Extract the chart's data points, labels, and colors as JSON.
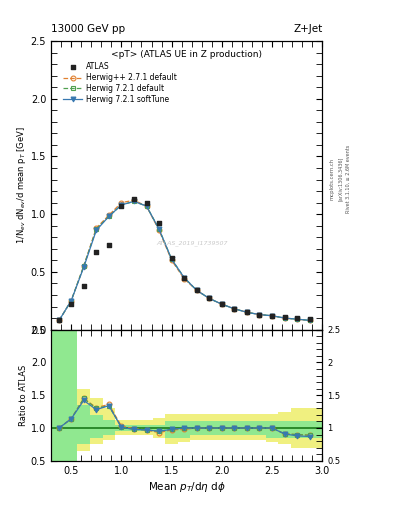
{
  "title_top": "13000 GeV pp",
  "title_right": "Z+Jet",
  "subtitle": "<pT> (ATLAS UE in Z production)",
  "xlabel": "Mean $p_T$/d$\\eta$ d$\\phi$",
  "ylabel_main": "1/N$_{ev}$ dN$_{ev}$/d mean p$_T$ [GeV]",
  "ylabel_ratio": "Ratio to ATLAS",
  "watermark": "ATLAS_2019_I1739507",
  "right_label1": "Rivet 3.1.10, ≥ 2.6M events",
  "right_label2": "[arXiv:1306.3436]",
  "right_label3": "mcplots.cern.ch",
  "xlim": [
    0.3,
    3.0
  ],
  "ylim_main": [
    0.0,
    2.5
  ],
  "ylim_ratio": [
    0.5,
    2.5
  ],
  "atlas_x": [
    0.38,
    0.5,
    0.625,
    0.75,
    0.875,
    1.0,
    1.125,
    1.25,
    1.375,
    1.5,
    1.625,
    1.75,
    1.875,
    2.0,
    2.125,
    2.25,
    2.375,
    2.5,
    2.625,
    2.75,
    2.875
  ],
  "atlas_y": [
    0.08,
    0.22,
    0.38,
    0.67,
    0.73,
    1.07,
    1.13,
    1.1,
    0.92,
    0.62,
    0.45,
    0.34,
    0.27,
    0.22,
    0.18,
    0.15,
    0.13,
    0.12,
    0.11,
    0.1,
    0.09
  ],
  "herwig_pp_x": [
    0.38,
    0.5,
    0.625,
    0.75,
    0.875,
    1.0,
    1.125,
    1.25,
    1.375,
    1.5,
    1.625,
    1.75,
    1.875,
    2.0,
    2.125,
    2.25,
    2.375,
    2.5,
    2.625,
    2.75,
    2.875
  ],
  "herwig_pp_y": [
    0.08,
    0.25,
    0.55,
    0.88,
    0.99,
    1.1,
    1.12,
    1.07,
    0.86,
    0.6,
    0.44,
    0.34,
    0.27,
    0.22,
    0.18,
    0.15,
    0.13,
    0.12,
    0.1,
    0.09,
    0.08
  ],
  "herwig721d_x": [
    0.38,
    0.5,
    0.625,
    0.75,
    0.875,
    1.0,
    1.125,
    1.25,
    1.375,
    1.5,
    1.625,
    1.75,
    1.875,
    2.0,
    2.125,
    2.25,
    2.375,
    2.5,
    2.625,
    2.75,
    2.875
  ],
  "herwig721d_y": [
    0.08,
    0.25,
    0.55,
    0.87,
    0.98,
    1.08,
    1.11,
    1.07,
    0.87,
    0.61,
    0.45,
    0.34,
    0.27,
    0.22,
    0.18,
    0.15,
    0.13,
    0.12,
    0.1,
    0.09,
    0.08
  ],
  "herwig721s_x": [
    0.38,
    0.5,
    0.625,
    0.75,
    0.875,
    1.0,
    1.125,
    1.25,
    1.375,
    1.5,
    1.625,
    1.75,
    1.875,
    2.0,
    2.125,
    2.25,
    2.375,
    2.5,
    2.625,
    2.75,
    2.875
  ],
  "herwig721s_y": [
    0.08,
    0.25,
    0.54,
    0.86,
    0.98,
    1.08,
    1.11,
    1.07,
    0.87,
    0.61,
    0.45,
    0.34,
    0.27,
    0.22,
    0.18,
    0.15,
    0.13,
    0.12,
    0.1,
    0.09,
    0.08
  ],
  "ratio_pp_y": [
    1.0,
    1.14,
    1.45,
    1.31,
    1.36,
    1.03,
    0.99,
    0.97,
    0.93,
    0.97,
    0.98,
    1.0,
    1.0,
    1.0,
    1.0,
    1.0,
    1.0,
    1.0,
    0.91,
    0.9,
    0.89
  ],
  "ratio_721d_y": [
    1.0,
    1.14,
    1.45,
    1.3,
    1.34,
    1.01,
    0.98,
    0.97,
    0.95,
    0.98,
    1.0,
    1.0,
    1.0,
    1.0,
    1.0,
    1.0,
    1.0,
    1.0,
    0.91,
    0.9,
    0.89
  ],
  "ratio_721s_y": [
    1.0,
    1.14,
    1.42,
    1.28,
    1.34,
    1.01,
    0.98,
    0.97,
    0.95,
    0.98,
    1.0,
    1.0,
    1.0,
    1.0,
    1.0,
    1.0,
    1.0,
    1.0,
    0.91,
    0.88,
    0.87
  ],
  "band_x_edges": [
    0.3,
    0.44,
    0.5625,
    0.6875,
    0.8125,
    0.9375,
    1.0625,
    1.1875,
    1.3125,
    1.4375,
    1.5625,
    1.6875,
    1.8125,
    1.9375,
    2.0625,
    2.1875,
    2.3125,
    2.4375,
    2.5625,
    2.6875,
    2.8125,
    3.0
  ],
  "band_green_lo": [
    0.5,
    0.5,
    0.75,
    0.85,
    0.9,
    0.95,
    0.95,
    0.95,
    0.95,
    0.85,
    0.85,
    0.9,
    0.9,
    0.9,
    0.9,
    0.9,
    0.9,
    0.85,
    0.85,
    0.85,
    0.85,
    0.85
  ],
  "band_green_hi": [
    2.5,
    2.5,
    1.35,
    1.2,
    1.12,
    1.05,
    1.05,
    1.05,
    1.05,
    1.1,
    1.1,
    1.1,
    1.1,
    1.1,
    1.1,
    1.1,
    1.1,
    1.1,
    1.1,
    1.1,
    1.1,
    1.1
  ],
  "band_yellow_lo": [
    0.5,
    0.5,
    0.65,
    0.75,
    0.82,
    0.9,
    0.9,
    0.9,
    0.85,
    0.75,
    0.78,
    0.82,
    0.82,
    0.82,
    0.82,
    0.82,
    0.82,
    0.78,
    0.75,
    0.7,
    0.7,
    0.7
  ],
  "band_yellow_hi": [
    2.5,
    2.5,
    1.6,
    1.45,
    1.3,
    1.12,
    1.12,
    1.12,
    1.15,
    1.22,
    1.22,
    1.22,
    1.22,
    1.22,
    1.22,
    1.22,
    1.22,
    1.22,
    1.25,
    1.3,
    1.3,
    1.3
  ],
  "color_pp": "#e08030",
  "color_721d": "#50a050",
  "color_721s": "#3878b0",
  "color_atlas": "#222222",
  "color_band_green": "#90e890",
  "color_band_yellow": "#f0f080",
  "bg_color": "#ffffff"
}
